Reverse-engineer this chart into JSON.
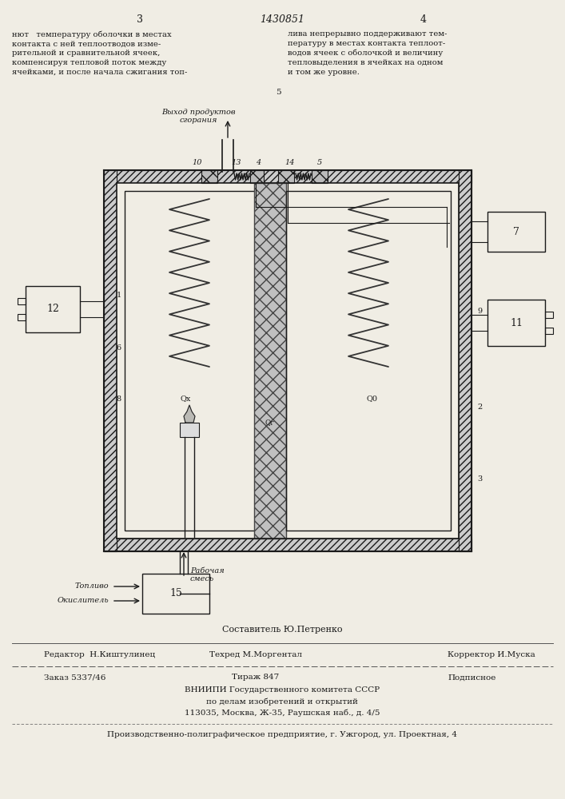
{
  "bg_color": "#f0ede4",
  "page_number_left": "3",
  "page_number_center": "1430851",
  "page_number_right": "4",
  "text_left_col": "нют   температуру оболочки в местах\nконтакта с ней теплоотводов изме-\nрительной и сравнительной ячеек,\nкомпенсируя тепловой поток между\nячейками, и после начала сжигания топ-",
  "text_right_col": "лива непрерывно поддерживают тем-\nпературу в местах контакта теплоот-\nводов ячеек с оболочкой и величину\nтепловыделения в ячейках на одном\nи том же уровне.",
  "label_5_between": "5",
  "diagram_label_exit": "Выход продуктов\nсгорания",
  "label_10": "10",
  "label_13": "13",
  "label_4": "4",
  "label_14": "14",
  "label_5": "5",
  "label_7": "7",
  "label_12": "12",
  "label_9": "9",
  "label_qx": "Qx",
  "label_qr": "Qг",
  "label_q0": "Q0",
  "label_1": "1",
  "label_6": "6",
  "label_8": "8",
  "label_2": "2",
  "label_11": "11",
  "label_3": "3",
  "label_fuel": "Топливо",
  "label_oxidizer": "Окислитель",
  "label_15": "15",
  "label_mixture": "Рабочая\nсмесь",
  "footer_author": "Составитель Ю.Петренко",
  "footer_editor": "Редактор  Н.Киштулинец",
  "footer_techred": "Техред М.Моргентал",
  "footer_corrector": "Корректор И.Муска",
  "footer_order": "Заказ 5337/46",
  "footer_tirazh": "Тираж 847",
  "footer_podpisnoe": "Подписное",
  "footer_vniip1": "ВНИИПИ Государственного комитета СССР",
  "footer_vniip2": "по делам изобретений и открытий",
  "footer_vniip3": "113035, Москва, Ж-35, Раушская наб., д. 4/5",
  "footer_prod": "Производственно-полиграфическое предприятие, г. Ужгород, ул. Проектная, 4"
}
